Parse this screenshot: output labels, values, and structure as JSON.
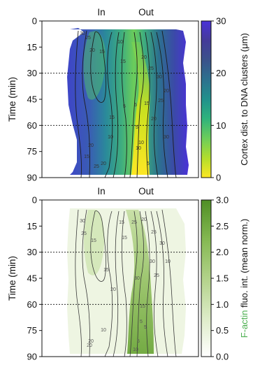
{
  "chart_data": [
    {
      "type": "heatmap",
      "title": "",
      "top_labels": [
        "In",
        "Out"
      ],
      "ylabel": "Time (min)",
      "y_ticks": [
        0,
        15,
        30,
        45,
        60,
        75,
        90
      ],
      "ylim": [
        0,
        90
      ],
      "y_inverted": true,
      "reference_lines_y": [
        30,
        60
      ],
      "colorbar": {
        "label": "Cortex dist. to DNA clusters (μm)",
        "ticks": [
          0,
          10,
          20,
          30
        ],
        "range": [
          0,
          30
        ],
        "colors": [
          "#fde724",
          "#84d44b",
          "#2db27d",
          "#21918c",
          "#2c728e",
          "#3b528b",
          "#472d7b",
          "#4a32d8"
        ]
      },
      "contour_levels": [
        5,
        10,
        15,
        20,
        25,
        30
      ],
      "contour_labels": [
        "30",
        "25",
        "20",
        "15",
        "10",
        "15",
        "20",
        "25",
        "30",
        "20",
        "15",
        "10",
        "5",
        "5",
        "5",
        "10",
        "15",
        "20",
        "25",
        "30",
        "20",
        "15",
        "10",
        "5",
        "20",
        "25"
      ]
    },
    {
      "type": "heatmap",
      "title": "",
      "top_labels": [
        "In",
        "Out"
      ],
      "ylabel": "Time (min)",
      "y_ticks": [
        0,
        15,
        30,
        45,
        60,
        75,
        90
      ],
      "ylim": [
        0,
        90
      ],
      "y_inverted": true,
      "reference_lines_y": [
        30,
        60
      ],
      "colorbar": {
        "label_prefix": "F-actin",
        "label_suffix": " fluo. int. (mean norm.)",
        "label_prefix_color": "#4caf50",
        "ticks": [
          "0.0",
          "0.5",
          "1.0",
          "1.5",
          "2.0",
          "2.5",
          "3.0"
        ],
        "range": [
          0,
          3
        ],
        "colors": [
          "#ffffff",
          "#e6f0d2",
          "#c2dba0",
          "#9cc56e",
          "#74ab44",
          "#4f8f25"
        ]
      },
      "contour_levels": [
        5,
        10,
        15,
        20,
        25,
        30
      ],
      "contour_labels": [
        "30",
        "25",
        "15",
        "15",
        "15",
        "20",
        "25",
        "30",
        "10",
        "15",
        "20",
        "25",
        "30",
        "15",
        "5",
        "5",
        "10",
        "20",
        "20",
        "30",
        "25",
        "5",
        "10"
      ]
    }
  ]
}
